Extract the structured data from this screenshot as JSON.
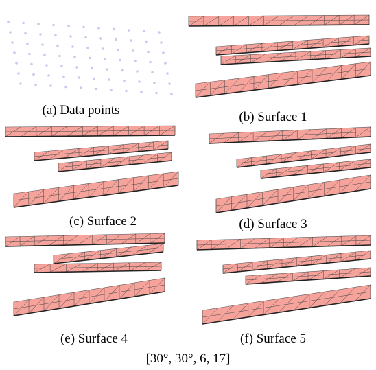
{
  "panels": [
    {
      "caption": "(a) Data points"
    },
    {
      "caption": "(b) Surface 1"
    },
    {
      "caption": "(c) Surface 2"
    },
    {
      "caption": "(d) Surface 3"
    },
    {
      "caption": "(e) Surface 4"
    },
    {
      "caption": "(f) Surface 5"
    }
  ],
  "caption": "[30°, 30°, 6, 17]"
}
